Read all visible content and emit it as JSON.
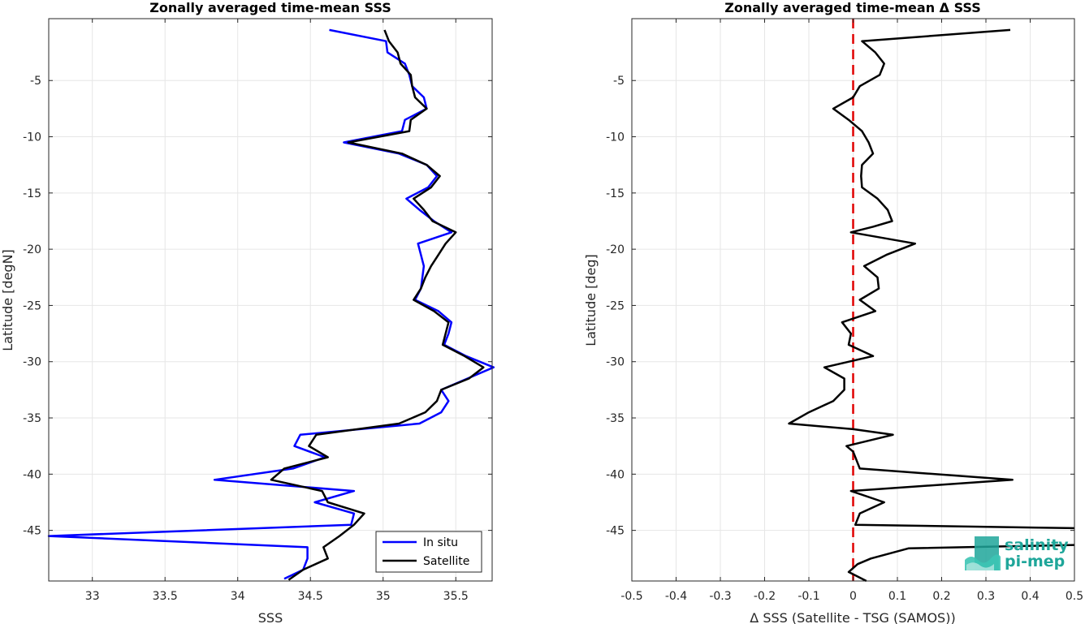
{
  "colors": {
    "in_situ": "#0000ff",
    "satellite": "#000000",
    "zero_line": "#e00000",
    "logo": "#1fa69a"
  },
  "logo": {
    "line1": "salinity",
    "line2": "pi-mep",
    "icon": "wave-logo-icon"
  },
  "chart_data": [
    {
      "type": "line",
      "title": "Zonally averaged time-mean SSS",
      "xlabel": "SSS",
      "ylabel": "Latitude [degN]",
      "xlim": [
        32.7,
        35.75
      ],
      "ylim": [
        -49.5,
        0.5
      ],
      "xticks": [
        "33",
        "33.5",
        "34",
        "34.5",
        "35",
        "35.5"
      ],
      "yticks": [
        "-5",
        "-10",
        "-15",
        "-20",
        "-25",
        "-30",
        "-35",
        "-40",
        "-45"
      ],
      "grid": true,
      "legend_position": "bottom-right",
      "series": [
        {
          "name": "In situ",
          "color": "#0000ff",
          "points": [
            [
              34.63,
              -0.5
            ],
            [
              35.02,
              -1.5
            ],
            [
              35.03,
              -2.5
            ],
            [
              35.15,
              -3.5
            ],
            [
              35.18,
              -4.5
            ],
            [
              35.2,
              -5.5
            ],
            [
              35.28,
              -6.5
            ],
            [
              35.3,
              -7.5
            ],
            [
              35.15,
              -8.5
            ],
            [
              35.13,
              -9.5
            ],
            [
              34.73,
              -10.5
            ],
            [
              35.11,
              -11.5
            ],
            [
              35.3,
              -12.5
            ],
            [
              35.37,
              -13.5
            ],
            [
              35.31,
              -14.5
            ],
            [
              35.16,
              -15.5
            ],
            [
              35.25,
              -16.5
            ],
            [
              35.35,
              -17.5
            ],
            [
              35.47,
              -18.5
            ],
            [
              35.24,
              -19.5
            ],
            [
              35.26,
              -20.5
            ],
            [
              35.28,
              -21.5
            ],
            [
              35.27,
              -22.5
            ],
            [
              35.26,
              -23.5
            ],
            [
              35.22,
              -24.5
            ],
            [
              35.38,
              -25.5
            ],
            [
              35.47,
              -26.5
            ],
            [
              35.45,
              -27.5
            ],
            [
              35.42,
              -28.5
            ],
            [
              35.57,
              -29.5
            ],
            [
              35.76,
              -30.5
            ],
            [
              35.58,
              -31.5
            ],
            [
              35.4,
              -32.5
            ],
            [
              35.45,
              -33.5
            ],
            [
              35.4,
              -34.5
            ],
            [
              35.25,
              -35.5
            ],
            [
              34.43,
              -36.5
            ],
            [
              34.39,
              -37.5
            ],
            [
              34.6,
              -38.5
            ],
            [
              34.38,
              -39.5
            ],
            [
              33.84,
              -40.5
            ],
            [
              34.8,
              -41.5
            ],
            [
              34.53,
              -42.5
            ],
            [
              34.8,
              -43.5
            ],
            [
              34.78,
              -44.5
            ],
            [
              32.7,
              -45.5
            ],
            [
              34.48,
              -46.5
            ],
            [
              34.48,
              -47.5
            ],
            [
              34.45,
              -48.5
            ],
            [
              34.32,
              -49.3
            ]
          ]
        },
        {
          "name": "Satellite",
          "color": "#000000",
          "points": [
            [
              35.01,
              -0.5
            ],
            [
              35.04,
              -1.5
            ],
            [
              35.1,
              -2.5
            ],
            [
              35.12,
              -3.5
            ],
            [
              35.19,
              -4.5
            ],
            [
              35.2,
              -5.5
            ],
            [
              35.22,
              -6.5
            ],
            [
              35.3,
              -7.5
            ],
            [
              35.19,
              -8.5
            ],
            [
              35.18,
              -9.5
            ],
            [
              34.76,
              -10.5
            ],
            [
              35.13,
              -11.5
            ],
            [
              35.3,
              -12.5
            ],
            [
              35.39,
              -13.5
            ],
            [
              35.33,
              -14.5
            ],
            [
              35.21,
              -15.5
            ],
            [
              35.28,
              -16.5
            ],
            [
              35.34,
              -17.5
            ],
            [
              35.5,
              -18.5
            ],
            [
              35.43,
              -19.5
            ],
            [
              35.38,
              -20.5
            ],
            [
              35.33,
              -21.5
            ],
            [
              35.29,
              -22.5
            ],
            [
              35.26,
              -23.5
            ],
            [
              35.21,
              -24.5
            ],
            [
              35.35,
              -25.5
            ],
            [
              35.45,
              -26.5
            ],
            [
              35.43,
              -27.5
            ],
            [
              35.41,
              -28.5
            ],
            [
              35.56,
              -29.5
            ],
            [
              35.69,
              -30.5
            ],
            [
              35.59,
              -31.5
            ],
            [
              35.4,
              -32.5
            ],
            [
              35.37,
              -33.5
            ],
            [
              35.29,
              -34.5
            ],
            [
              35.11,
              -35.5
            ],
            [
              34.54,
              -36.5
            ],
            [
              34.49,
              -37.5
            ],
            [
              34.62,
              -38.5
            ],
            [
              34.32,
              -39.5
            ],
            [
              34.23,
              -40.5
            ],
            [
              34.58,
              -41.5
            ],
            [
              34.62,
              -42.5
            ],
            [
              34.87,
              -43.5
            ],
            [
              34.8,
              -44.5
            ],
            [
              34.7,
              -45.5
            ],
            [
              34.59,
              -46.5
            ],
            [
              34.62,
              -47.5
            ],
            [
              34.45,
              -48.5
            ],
            [
              34.35,
              -49.4
            ]
          ]
        }
      ]
    },
    {
      "type": "line",
      "title": "Zonally averaged time-mean Δ SSS",
      "xlabel": "Δ SSS (Satellite - TSG (SAMOS))",
      "ylabel": "Latitude [deg]",
      "xlim": [
        -0.5,
        0.5
      ],
      "ylim": [
        -49.5,
        0.5
      ],
      "xticks": [
        "-0.5",
        "-0.4",
        "-0.3",
        "-0.2",
        "-0.1",
        "0",
        "0.1",
        "0.2",
        "0.3",
        "0.4",
        "0.5"
      ],
      "yticks": [
        "-5",
        "-10",
        "-15",
        "-20",
        "-25",
        "-30",
        "-35",
        "-40",
        "-45"
      ],
      "grid": true,
      "reference_line_x": 0,
      "series": [
        {
          "color": "#000000",
          "points": [
            [
              0.355,
              -0.5
            ],
            [
              0.02,
              -1.5
            ],
            [
              0.05,
              -2.5
            ],
            [
              0.07,
              -3.5
            ],
            [
              0.06,
              -4.5
            ],
            [
              0.015,
              -5.5
            ],
            [
              0.0,
              -6.5
            ],
            [
              -0.045,
              -7.5
            ],
            [
              -0.01,
              -8.5
            ],
            [
              0.02,
              -9.5
            ],
            [
              0.035,
              -10.5
            ],
            [
              0.045,
              -11.5
            ],
            [
              0.02,
              -12.5
            ],
            [
              0.018,
              -13.5
            ],
            [
              0.02,
              -14.5
            ],
            [
              0.055,
              -15.5
            ],
            [
              0.078,
              -16.5
            ],
            [
              0.088,
              -17.5
            ],
            [
              0.045,
              -18.0
            ],
            [
              -0.005,
              -18.5
            ],
            [
              0.14,
              -19.5
            ],
            [
              0.075,
              -20.5
            ],
            [
              0.025,
              -21.5
            ],
            [
              0.055,
              -22.5
            ],
            [
              0.058,
              -23.5
            ],
            [
              0.015,
              -24.5
            ],
            [
              0.05,
              -25.5
            ],
            [
              -0.025,
              -26.5
            ],
            [
              -0.005,
              -27.5
            ],
            [
              -0.01,
              -28.5
            ],
            [
              0.045,
              -29.5
            ],
            [
              -0.065,
              -30.5
            ],
            [
              -0.02,
              -31.5
            ],
            [
              -0.02,
              -32.5
            ],
            [
              -0.045,
              -33.5
            ],
            [
              -0.1,
              -34.5
            ],
            [
              -0.145,
              -35.5
            ],
            [
              0.0,
              -36.0
            ],
            [
              0.09,
              -36.5
            ],
            [
              -0.015,
              -37.5
            ],
            [
              0.0,
              -38.0
            ],
            [
              0.015,
              -39.5
            ],
            [
              0.36,
              -40.5
            ],
            [
              -0.005,
              -41.5
            ],
            [
              0.07,
              -42.5
            ],
            [
              0.015,
              -43.5
            ],
            [
              0.005,
              -44.5
            ],
            [
              0.5,
              -44.8
            ]
          ]
        },
        {
          "color": "#000000",
          "points": [
            [
              0.5,
              -46.3
            ],
            [
              0.125,
              -46.6
            ],
            [
              0.04,
              -47.5
            ],
            [
              0.01,
              -48.0
            ],
            [
              -0.01,
              -48.7
            ],
            [
              0.03,
              -49.5
            ]
          ]
        }
      ]
    }
  ]
}
